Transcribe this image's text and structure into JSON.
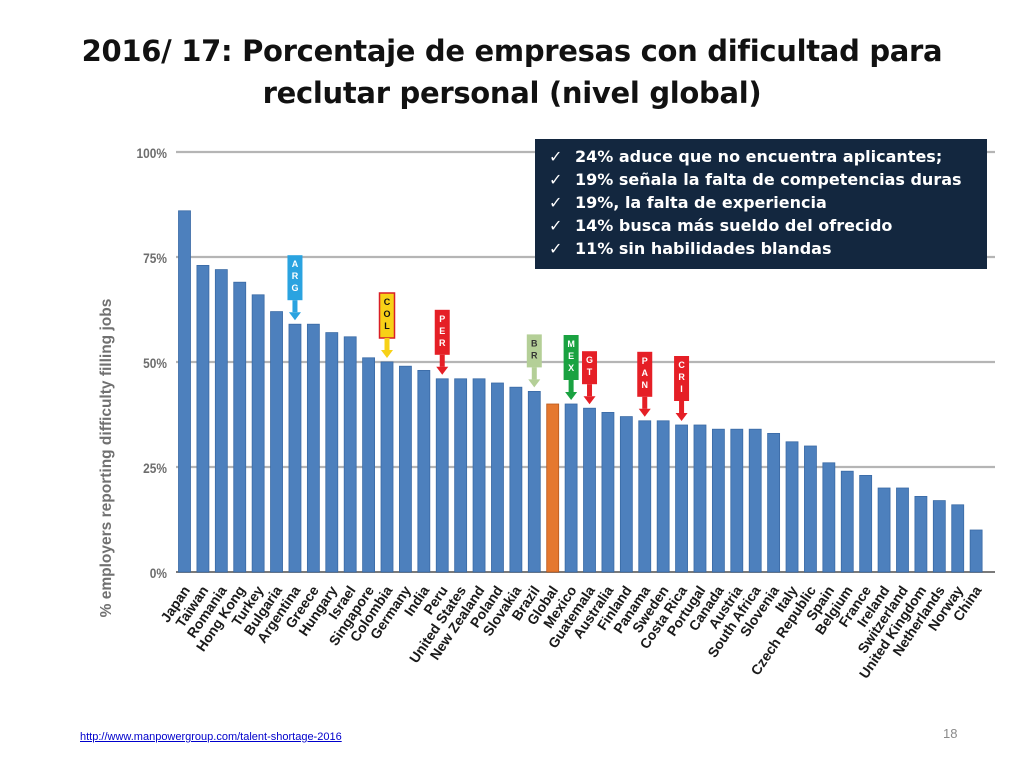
{
  "slide": {
    "title_line1": "2016/ 17: Porcentaje de empresas con dificultad para",
    "title_line2": "reclutar personal (nivel global)",
    "source_url": "http://www.manpowergroup.com/talent-shortage-2016",
    "page_number": "18"
  },
  "callout": {
    "items": [
      "24% aduce que no encuentra aplicantes;",
      "19% señala la falta de competencias duras",
      "19%, la falta de experiencia",
      "14% busca más sueldo del ofrecido",
      "11% sin habilidades blandas"
    ],
    "check_glyph": "✓"
  },
  "chart_data": {
    "type": "bar",
    "ylabel": "% employers reporting difficulty filling jobs",
    "ylim": [
      0,
      100
    ],
    "yticks": [
      0,
      25,
      50,
      75,
      100
    ],
    "ytick_labels": [
      "0%",
      "25%",
      "50%",
      "75%",
      "100%"
    ],
    "grid": true,
    "bar_color": "#4d80bd",
    "highlight_color": "#e5782f",
    "highlight_category": "Global",
    "categories": [
      "Japan",
      "Taiwan",
      "Romania",
      "Hong Kong",
      "Turkey",
      "Bulgaria",
      "Argentina",
      "Greece",
      "Hungary",
      "Israel",
      "Singapore",
      "Colombia",
      "Germany",
      "India",
      "Peru",
      "United States",
      "New Zealand",
      "Poland",
      "Slovakia",
      "Brazil",
      "Global",
      "Mexico",
      "Guatemala",
      "Australia",
      "Finland",
      "Panama",
      "Sweden",
      "Costa Rica",
      "Portugal",
      "Canada",
      "Austria",
      "South Africa",
      "Slovenia",
      "Italy",
      "Czech Republic",
      "Spain",
      "Belgium",
      "France",
      "Ireland",
      "Switzerland",
      "United Kingdom",
      "Netherlands",
      "Norway",
      "China"
    ],
    "values": [
      86,
      73,
      72,
      69,
      66,
      62,
      59,
      59,
      57,
      56,
      51,
      50,
      49,
      48,
      46,
      46,
      46,
      45,
      44,
      43,
      40,
      40,
      39,
      38,
      37,
      36,
      36,
      35,
      35,
      34,
      34,
      34,
      33,
      31,
      30,
      26,
      24,
      23,
      20,
      20,
      18,
      17,
      16,
      10
    ],
    "markers": [
      {
        "category": "Argentina",
        "letters": [
          "A",
          "R",
          "G"
        ],
        "color": "#2aa3e0",
        "letter_color": "#ffffff",
        "outline": ""
      },
      {
        "category": "Colombia",
        "letters": [
          "C",
          "O",
          "L"
        ],
        "color": "#f7d117",
        "letter_color": "#111111",
        "outline": "#d91f26"
      },
      {
        "category": "Peru",
        "letters": [
          "P",
          "E",
          "R"
        ],
        "color": "#e51f26",
        "letter_color": "#ffffff",
        "outline": ""
      },
      {
        "category": "Brazil",
        "letters": [
          "B",
          "R"
        ],
        "color": "#b4cf97",
        "letter_color": "#333333",
        "outline": ""
      },
      {
        "category": "Mexico",
        "letters": [
          "M",
          "E",
          "X"
        ],
        "color": "#1aa241",
        "letter_color": "#ffffff",
        "outline": ""
      },
      {
        "category": "Guatemala",
        "letters": [
          "G",
          "T"
        ],
        "color": "#e51f26",
        "letter_color": "#ffffff",
        "outline": ""
      },
      {
        "category": "Panama",
        "letters": [
          "P",
          "A",
          "N"
        ],
        "color": "#e51f26",
        "letter_color": "#ffffff",
        "outline": ""
      },
      {
        "category": "Costa Rica",
        "letters": [
          "C",
          "R",
          "I"
        ],
        "color": "#e51f26",
        "letter_color": "#ffffff",
        "outline": ""
      }
    ]
  }
}
